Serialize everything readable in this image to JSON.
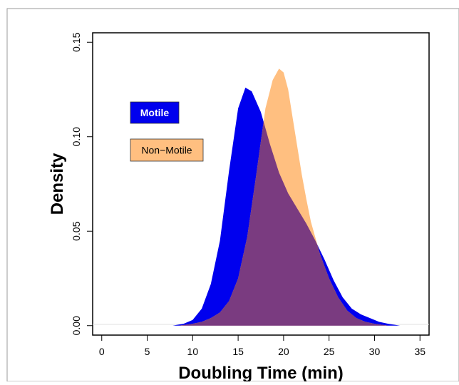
{
  "chart_data": {
    "type": "area",
    "title": "",
    "xlabel": "Doubling Time (min)",
    "ylabel": "Density",
    "xlim": [
      -1,
      36
    ],
    "ylim": [
      -0.005,
      0.155
    ],
    "x_ticks": [
      0,
      5,
      10,
      15,
      20,
      25,
      30,
      35
    ],
    "y_ticks": [
      0.0,
      0.05,
      0.1,
      0.15
    ],
    "y_tick_labels": [
      "0.00",
      "0.05",
      "0.10",
      "0.15"
    ],
    "legend": {
      "placement": "top-left",
      "entries": [
        {
          "label": "Motile",
          "color": "#0000ee",
          "text_color": "#ffffff"
        },
        {
          "label": "Non−Motile",
          "color": "#ffbf80",
          "text_color": "#000000"
        }
      ]
    },
    "overlap_color": "#7a3b80",
    "series": [
      {
        "name": "Motile",
        "color": "#0000ee",
        "x": [
          7.8,
          9,
          10,
          11,
          12,
          13,
          14,
          15,
          15.8,
          16.5,
          17.5,
          18.5,
          19.5,
          20.5,
          21.5,
          22.5,
          23.5,
          24.5,
          25.5,
          26.5,
          27.5,
          28.5,
          29.5,
          30.5,
          31.5,
          32.8
        ],
        "y": [
          0.0,
          0.001,
          0.003,
          0.009,
          0.022,
          0.045,
          0.082,
          0.115,
          0.126,
          0.124,
          0.113,
          0.096,
          0.081,
          0.07,
          0.062,
          0.054,
          0.045,
          0.035,
          0.024,
          0.015,
          0.009,
          0.006,
          0.004,
          0.002,
          0.001,
          0.0
        ]
      },
      {
        "name": "Non−Motile",
        "color": "#ffbf80",
        "x": [
          8.5,
          10,
          11,
          12,
          13,
          14,
          15,
          16,
          17,
          18,
          18.8,
          19.5,
          20,
          20.5,
          21,
          21.5,
          22,
          22.5,
          23,
          24,
          25,
          26,
          27,
          28,
          29,
          30,
          31.5
        ],
        "y": [
          0.0,
          0.001,
          0.002,
          0.004,
          0.007,
          0.013,
          0.025,
          0.047,
          0.08,
          0.115,
          0.13,
          0.136,
          0.134,
          0.125,
          0.11,
          0.095,
          0.08,
          0.067,
          0.055,
          0.038,
          0.025,
          0.015,
          0.008,
          0.004,
          0.002,
          0.001,
          0.0
        ]
      }
    ]
  }
}
